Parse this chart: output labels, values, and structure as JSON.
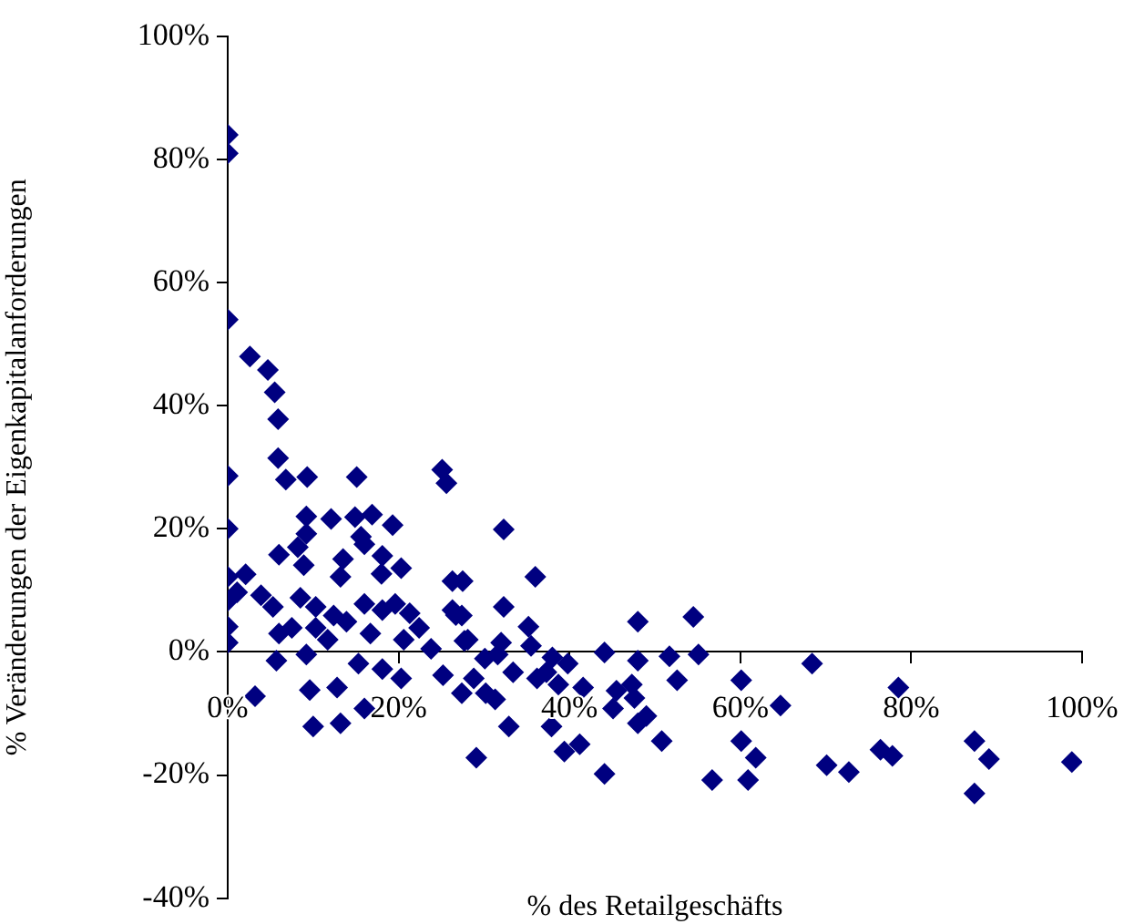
{
  "chart_data": {
    "type": "scatter",
    "xlabel": "% des Retailgeschäfts",
    "ylabel": "% Veränderungen der Eigenkapitalanforderungen",
    "color": "#000080",
    "marker": "diamond",
    "grid": false,
    "legend": false,
    "xlim": [
      0,
      100
    ],
    "ylim": [
      -40,
      100
    ],
    "xticks": [
      {
        "value": 0,
        "label": "0%"
      },
      {
        "value": 20,
        "label": "20%"
      },
      {
        "value": 40,
        "label": "40%"
      },
      {
        "value": 60,
        "label": "60%"
      },
      {
        "value": 80,
        "label": "80%"
      },
      {
        "value": 100,
        "label": "100%"
      }
    ],
    "yticks": [
      {
        "value": -40,
        "label": "-40%"
      },
      {
        "value": -20,
        "label": "-20%"
      },
      {
        "value": 0,
        "label": "0%"
      },
      {
        "value": 20,
        "label": "20%"
      },
      {
        "value": 40,
        "label": "40%"
      },
      {
        "value": 60,
        "label": "60%"
      },
      {
        "value": 80,
        "label": "80%"
      },
      {
        "value": 100,
        "label": "100%"
      }
    ],
    "x": [
      0,
      0,
      0,
      2.6,
      4.7,
      5.5,
      5.9,
      5.9,
      6.8,
      9.3,
      15.1,
      0,
      0,
      25.1,
      25.6,
      9.2,
      12.1,
      14.9,
      16.9,
      19.3,
      9.2,
      15.6,
      16,
      6,
      8.2,
      8.9,
      13.5,
      13.2,
      18.1,
      20.3,
      18,
      26.3,
      27.5,
      0,
      2.1,
      1.1,
      0,
      3.9,
      5.3,
      8.5,
      10.3,
      12.4,
      16,
      18.1,
      19.6,
      21.3,
      22.4,
      26.3,
      27.4,
      0,
      0,
      6,
      7.5,
      10.3,
      11.7,
      13.9,
      16.7,
      20.6,
      23.8,
      28.1,
      5.7,
      9.2,
      15.3,
      18.1,
      20.3,
      25.2,
      27.4,
      30.2,
      3.2,
      9.6,
      12.8,
      16,
      10,
      13.2,
      29.1,
      32.3,
      36,
      26.7,
      32.3,
      35.2,
      27.7,
      32,
      35.5,
      30.1,
      31.6,
      38,
      39.8,
      44.1,
      48,
      48,
      51.7,
      54.5,
      55.1,
      33.4,
      36.2,
      37.3,
      41.6,
      38.7,
      31.3,
      28.8,
      52.6,
      60.1,
      45.5,
      47.3,
      45.1,
      47.6,
      49,
      48,
      50.8,
      37.9,
      32.9,
      41.2,
      39.4,
      44.1,
      60.1,
      61.8,
      56.7,
      60.9,
      64.7,
      68.4,
      78.5,
      76.4,
      77.8,
      70.1,
      72.7,
      87.4,
      89.1,
      87.4,
      98.8
    ],
    "values": [
      84,
      81,
      54,
      48,
      45.8,
      42.2,
      37.8,
      31.5,
      28,
      28.4,
      28.4,
      28.6,
      20,
      29.6,
      27.4,
      22,
      21.6,
      21.9,
      22.3,
      20.6,
      19.2,
      18.7,
      17.5,
      15.8,
      17,
      14.1,
      15.1,
      12.2,
      15.6,
      13.6,
      12.7,
      11.5,
      11.5,
      12.2,
      12.6,
      9.7,
      8.3,
      9.2,
      7.3,
      8.8,
      7.3,
      5.9,
      7.8,
      6.8,
      7.8,
      6.3,
      3.9,
      6.8,
      5.9,
      4.1,
      1.5,
      3,
      3.9,
      3.9,
      2,
      4.9,
      3,
      2,
      0.5,
      2,
      -1.4,
      -0.4,
      -1.9,
      -2.8,
      -4.3,
      -3.8,
      -6.7,
      -6.7,
      -7.2,
      -6.2,
      -5.8,
      -9.2,
      -12.1,
      -11.6,
      -17.2,
      19.9,
      12.2,
      6,
      7.3,
      4.1,
      1.8,
      1.5,
      1,
      -1.1,
      -0.4,
      -0.9,
      -1.9,
      -0.1,
      4.9,
      -1.4,
      -0.7,
      5.7,
      -0.4,
      -3.3,
      -4.3,
      -3.3,
      -5.8,
      -5.3,
      -7.7,
      -4.3,
      -4.6,
      -4.6,
      -6.3,
      -5.3,
      -9.2,
      -7.5,
      -10.4,
      -11.6,
      -14.5,
      -12.1,
      -12.1,
      -15,
      -16.2,
      -19.8,
      -14.5,
      -17.2,
      -20.8,
      -20.8,
      -8.7,
      -1.9,
      -5.8,
      -15.9,
      -16.9,
      -18.4,
      -19.5,
      -14.5,
      -17.4,
      -23,
      -17.9
    ]
  }
}
